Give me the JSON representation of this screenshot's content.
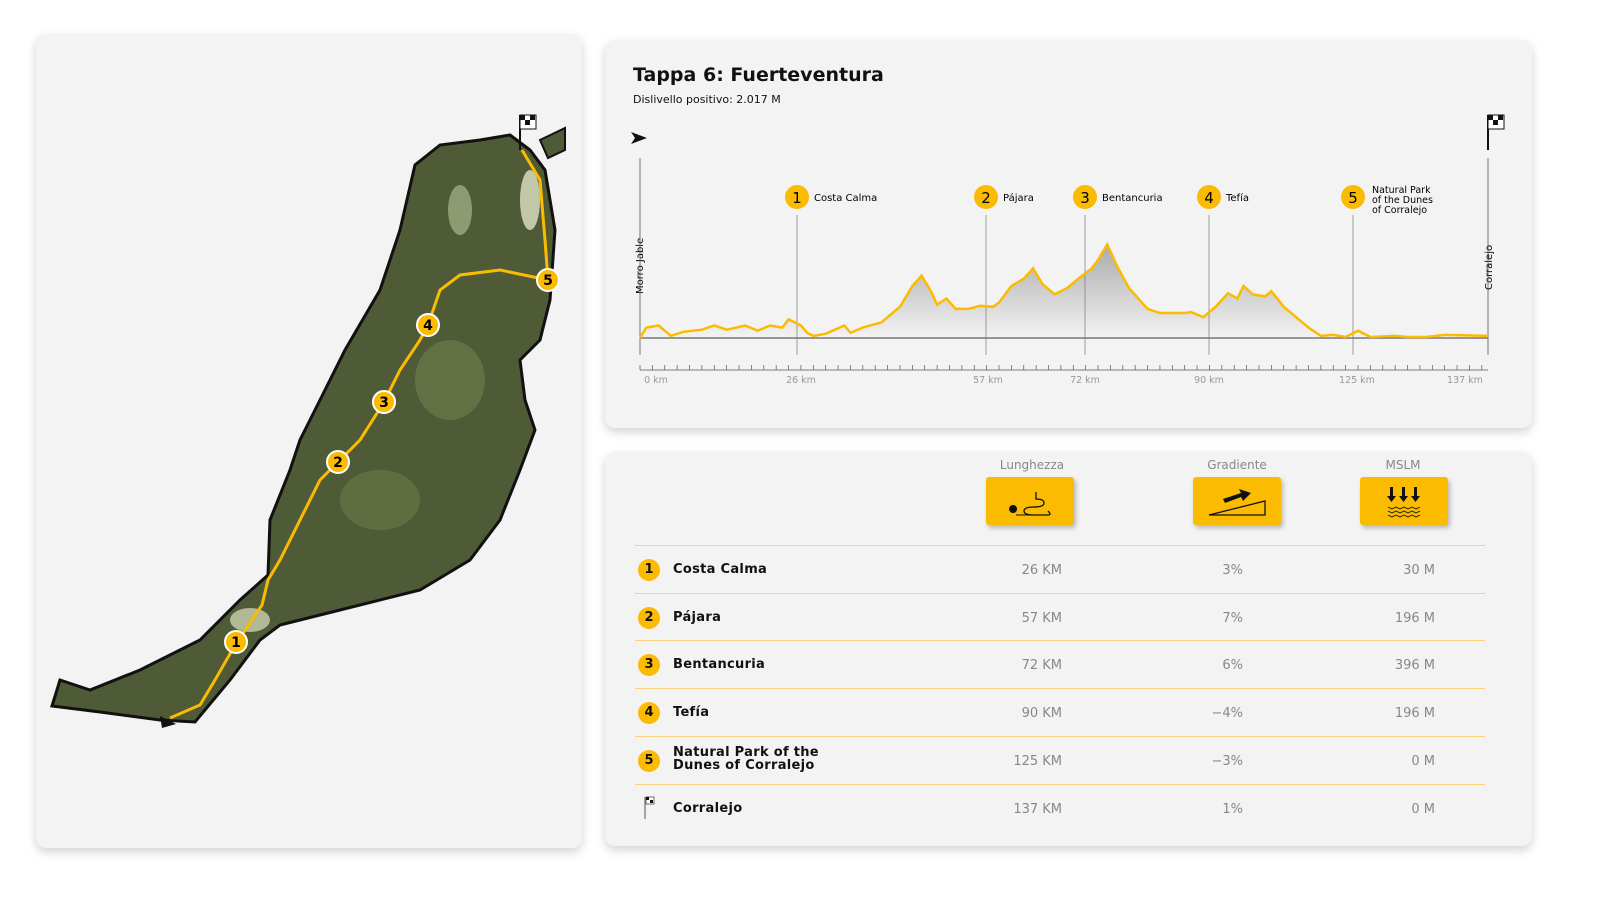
{
  "profile": {
    "title": "Tappa 6: Fuerteventura",
    "subtitle": "Dislivello positivo: 2.017 M",
    "start_label": "Morro Jable",
    "end_label": "Corralejo"
  },
  "colors": {
    "accent": "#fbbb00",
    "land": "#4f5a36"
  },
  "chart_data": {
    "type": "area",
    "xlabel": "km",
    "xlim": [
      0,
      137
    ],
    "ylim": [
      0,
      500
    ],
    "x_ticks": [
      "0 km",
      "26 km",
      "57 km",
      "72 km",
      "90 km",
      "125 km",
      "137 km"
    ],
    "x_tick_values": [
      0,
      26,
      57,
      72,
      90,
      125,
      137
    ],
    "waypoints": [
      {
        "n": "1",
        "km": 26,
        "label": "Costa Calma"
      },
      {
        "n": "2",
        "km": 57,
        "label": "Pájara"
      },
      {
        "n": "3",
        "km": 72,
        "label": "Bentancuria"
      },
      {
        "n": "4",
        "km": 90,
        "label": "Tefía"
      },
      {
        "n": "5",
        "km": 125,
        "label": "Natural Park of the Dunes of Corralejo"
      }
    ],
    "km": [
      0,
      1,
      3,
      5,
      7,
      10,
      12,
      14,
      17,
      19,
      21,
      23,
      24,
      26,
      27,
      28,
      30,
      33,
      34,
      36,
      39,
      42,
      44,
      45.5,
      47,
      48,
      49.5,
      51,
      53,
      55,
      57,
      58,
      60,
      62,
      63.5,
      65,
      67,
      69,
      71,
      73,
      74,
      75.5,
      77,
      79,
      82,
      84,
      88,
      89,
      91,
      93,
      95,
      96.5,
      97.5,
      99,
      101,
      102,
      104,
      106,
      108,
      110,
      112,
      114,
      116,
      118,
      122,
      124,
      127,
      130,
      137
    ],
    "elevation": [
      0,
      50,
      60,
      10,
      30,
      40,
      60,
      40,
      60,
      35,
      60,
      50,
      90,
      60,
      25,
      10,
      20,
      60,
      25,
      50,
      75,
      150,
      250,
      300,
      225,
      160,
      190,
      140,
      140,
      155,
      150,
      170,
      250,
      285,
      335,
      260,
      210,
      240,
      290,
      335,
      375,
      450,
      350,
      240,
      140,
      120,
      120,
      125,
      100,
      150,
      215,
      190,
      250,
      210,
      200,
      225,
      150,
      100,
      50,
      10,
      15,
      5,
      35,
      5,
      10,
      5,
      5,
      15,
      10
    ]
  },
  "table": {
    "headers": [
      "Lunghezza",
      "Gradiente",
      "MSLM"
    ],
    "rows": [
      {
        "n": "1",
        "name": "Costa Calma",
        "len": "26 KM",
        "grad": "3%",
        "alt": "30 M"
      },
      {
        "n": "2",
        "name": "Pájara",
        "len": "57 KM",
        "grad": "7%",
        "alt": "196 M"
      },
      {
        "n": "3",
        "name": "Bentancuria",
        "len": "72 KM",
        "grad": "6%",
        "alt": "396 M"
      },
      {
        "n": "4",
        "name": "Tefía",
        "len": "90 KM",
        "grad": "−4%",
        "alt": "196 M"
      },
      {
        "n": "5",
        "name": "Natural Park of the Dunes of Corralejo",
        "len": "125 KM",
        "grad": "−3%",
        "alt": "0 M"
      },
      {
        "n": "",
        "name": "Corralejo",
        "len": "137 KM",
        "grad": "1%",
        "alt": "0 M"
      }
    ]
  },
  "map": {
    "markers": [
      "1",
      "2",
      "3",
      "4",
      "5"
    ]
  }
}
